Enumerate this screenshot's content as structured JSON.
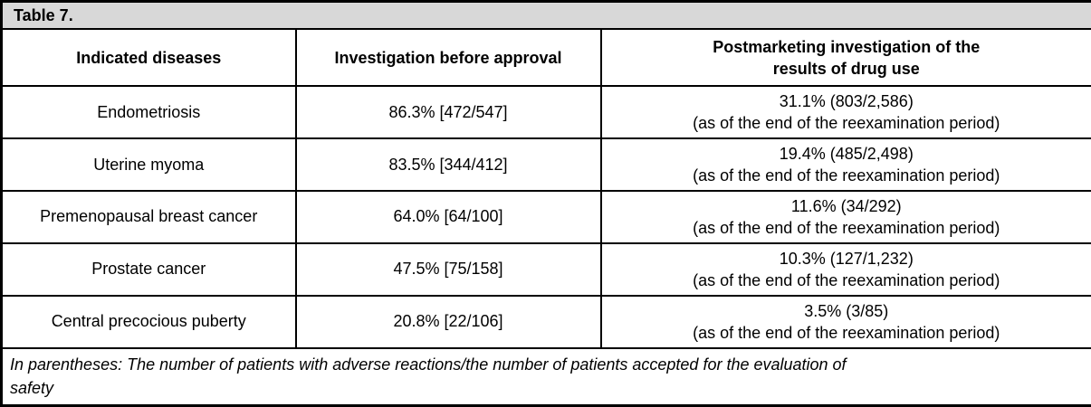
{
  "table": {
    "title": "Table 7.",
    "columns": {
      "diseases": "Indicated diseases",
      "before_approval": "Investigation before approval",
      "postmarketing": "Postmarketing investigation of the\nresults of drug use"
    },
    "rows": [
      {
        "disease": "Endometriosis",
        "before_approval": "86.3% [472/547]",
        "postmarketing_rate": "31.1% (803/2,586)",
        "postmarketing_note": "(as of the end of the reexamination period)"
      },
      {
        "disease": "Uterine myoma",
        "before_approval": "83.5% [344/412]",
        "postmarketing_rate": "19.4% (485/2,498)",
        "postmarketing_note": "(as of the end of the reexamination period)"
      },
      {
        "disease": "Premenopausal breast cancer",
        "before_approval": "64.0% [64/100]",
        "postmarketing_rate": "11.6% (34/292)",
        "postmarketing_note": "(as of the end of the reexamination period)"
      },
      {
        "disease": "Prostate cancer",
        "before_approval": "47.5% [75/158]",
        "postmarketing_rate": "10.3% (127/1,232)",
        "postmarketing_note": "(as of the end of the reexamination period)"
      },
      {
        "disease": "Central precocious puberty",
        "before_approval": "20.8% [22/106]",
        "postmarketing_rate": "3.5% (3/85)",
        "postmarketing_note": "(as of the end of the reexamination period)"
      }
    ],
    "footnote": "In parentheses: The number of patients with adverse reactions/the number of patients accepted for the evaluation of\nsafety",
    "colors": {
      "title_background": "#d8d8d8",
      "border": "#000000",
      "cell_background": "#ffffff",
      "text": "#000000"
    }
  }
}
